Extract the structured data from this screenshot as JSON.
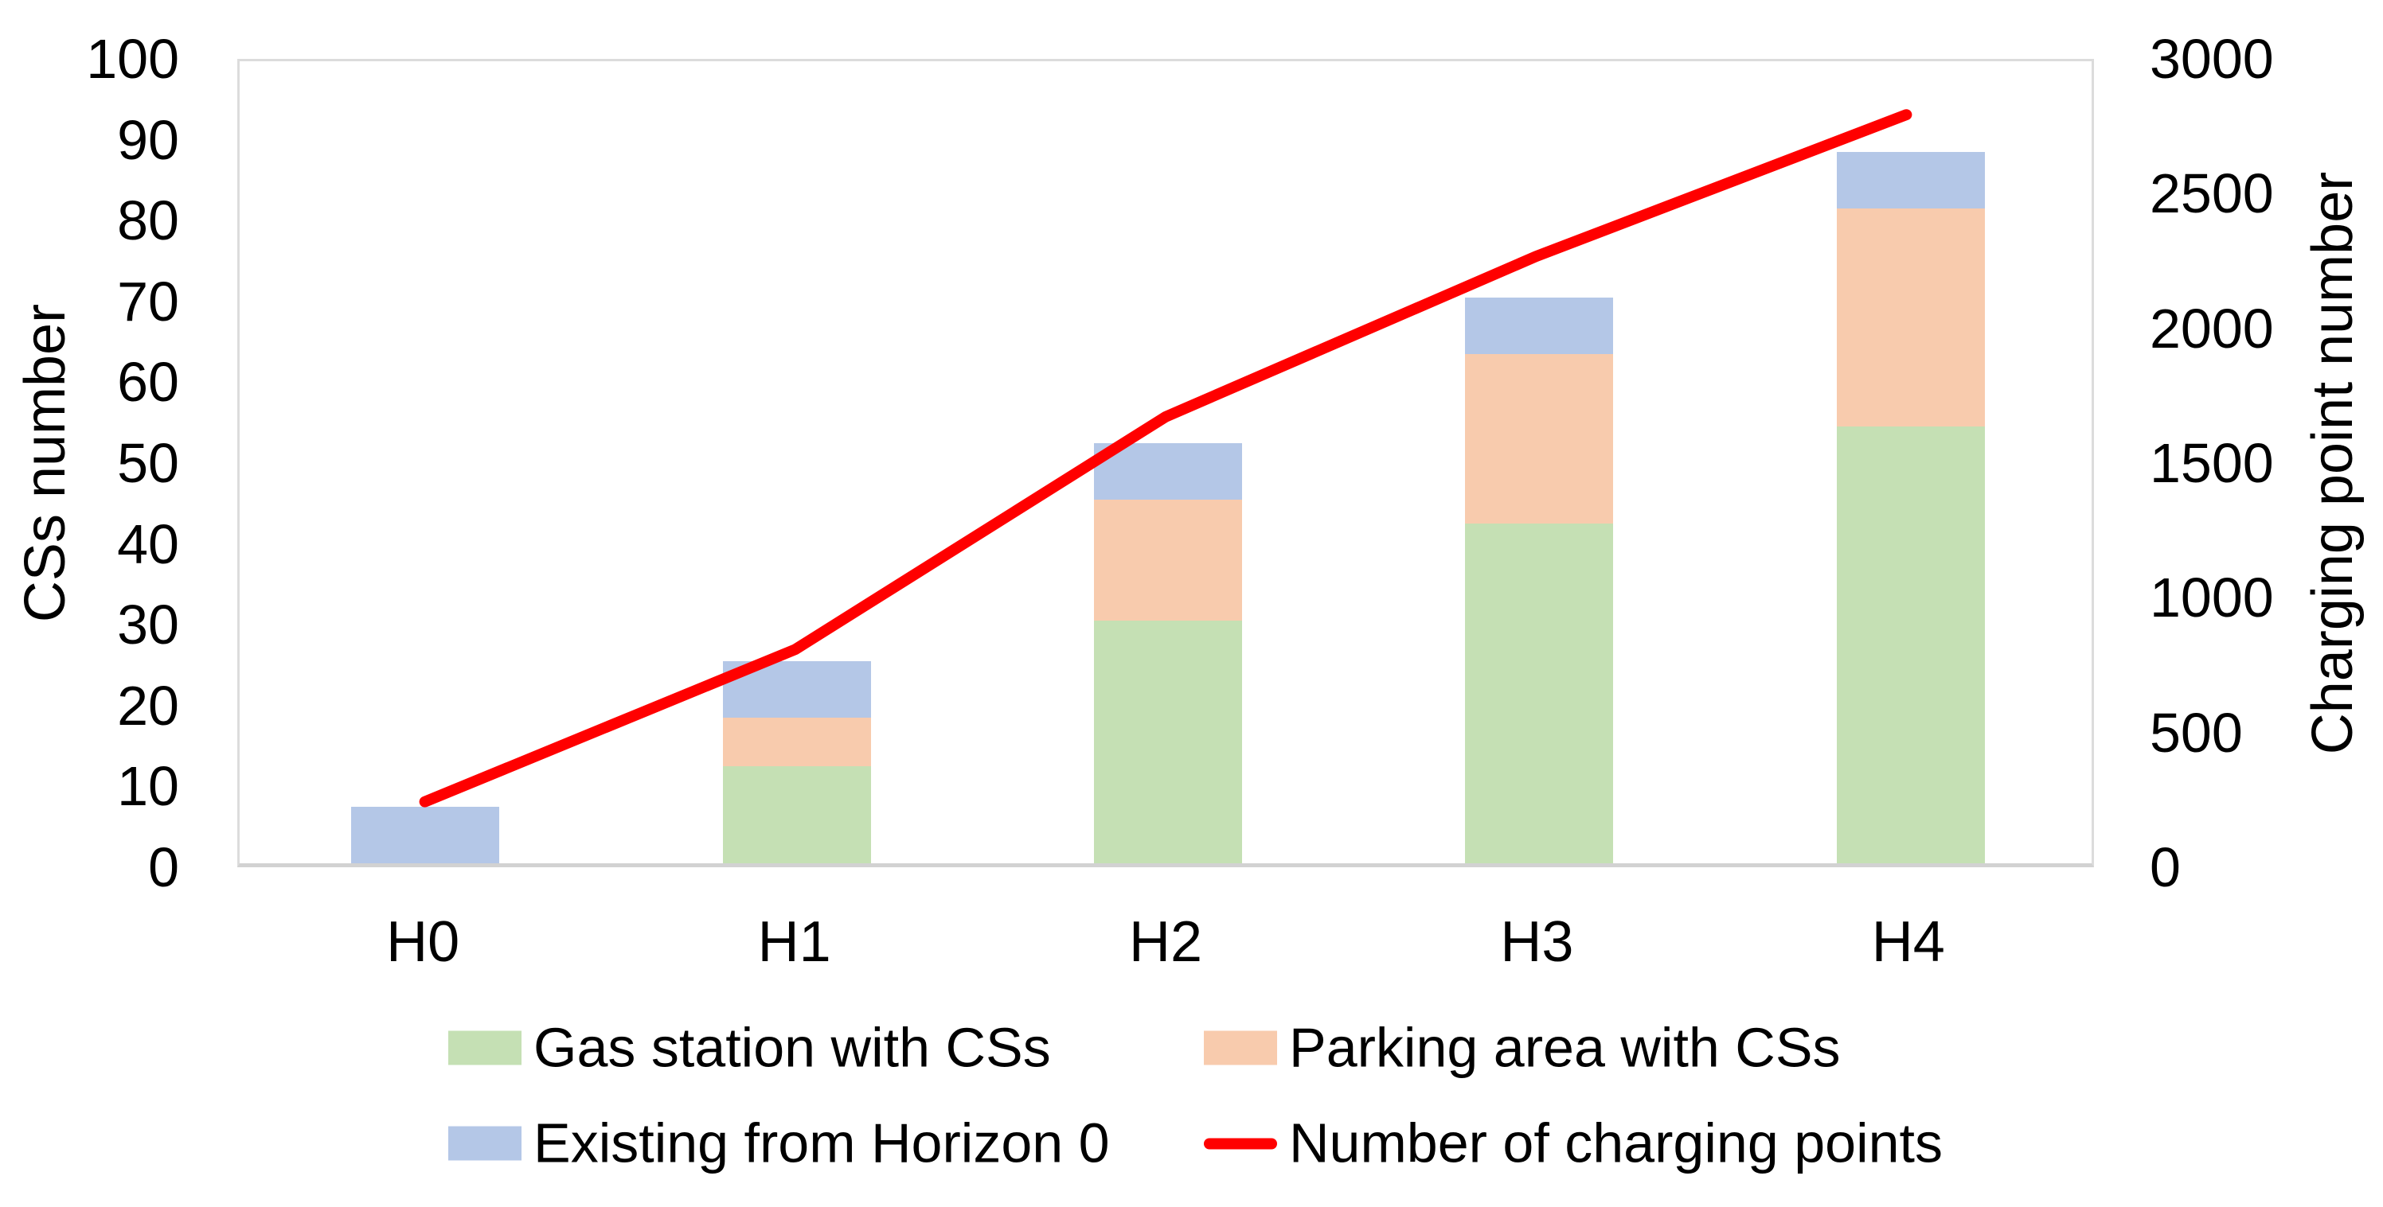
{
  "chart_data": {
    "type": "combo-bar-line",
    "stacked": true,
    "grid": false,
    "legend_position": "bottom",
    "categories": [
      "H0",
      "H1",
      "H2",
      "H3",
      "H4"
    ],
    "bar_series": [
      {
        "name": "Gas station with CSs",
        "color": "#c5e0b4",
        "values": [
          0,
          12,
          30,
          42,
          54
        ]
      },
      {
        "name": "Parking area with CSs",
        "color": "#f8cbad",
        "values": [
          0,
          6,
          15,
          21,
          27
        ]
      },
      {
        "name": "Existing from Horizon 0",
        "color": "#b4c7e7",
        "values": [
          7,
          7,
          7,
          7,
          7
        ]
      }
    ],
    "line_series": {
      "name": "Number of charging points",
      "color": "#ff0000",
      "axis": "right",
      "values": [
        230,
        800,
        1670,
        2270,
        2800
      ]
    },
    "left_axis": {
      "title": "CSs number",
      "min": 0,
      "max": 100,
      "step": 10,
      "tick_labels": [
        "0",
        "10",
        "20",
        "30",
        "40",
        "50",
        "60",
        "70",
        "80",
        "90",
        "100"
      ]
    },
    "right_axis": {
      "title": "Charging point number",
      "min": 0,
      "max": 3000,
      "step": 500,
      "tick_labels": [
        "0",
        "500",
        "1000",
        "1500",
        "2000",
        "2500",
        "3000"
      ]
    },
    "colors": {
      "plot_border": "#dcdcdc",
      "axis_line": "#d2d2d2",
      "text": "#000000"
    }
  }
}
